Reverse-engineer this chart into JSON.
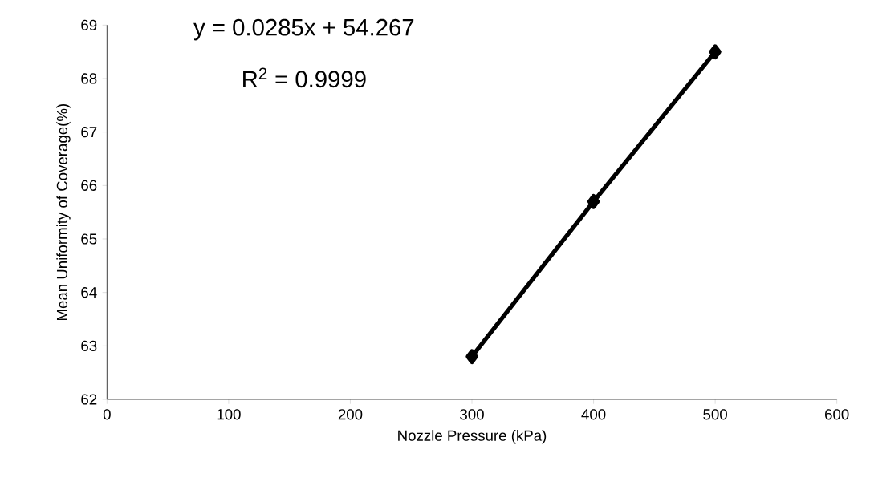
{
  "chart_data": {
    "type": "line",
    "xlabel": "Nozzle Pressure (kPa)",
    "ylabel": "Mean Uniformity of Coverage(%)",
    "annotations": [
      "y = 0.0285x + 54.267",
      "R$^{2}$ = 0.9999"
    ],
    "x": [
      300,
      400,
      500
    ],
    "series": [
      {
        "color": "#000000",
        "values": [
          62.8,
          65.7,
          68.5
        ]
      }
    ],
    "xlim": [
      0,
      600
    ],
    "xticks": [
      0,
      100,
      200,
      300,
      400,
      500,
      600
    ],
    "ylim": [
      62,
      69
    ],
    "yticks": [
      62,
      63,
      64,
      65,
      66,
      67,
      68,
      69
    ],
    "grid": false,
    "marker": "diamond",
    "line_style": "solid"
  }
}
